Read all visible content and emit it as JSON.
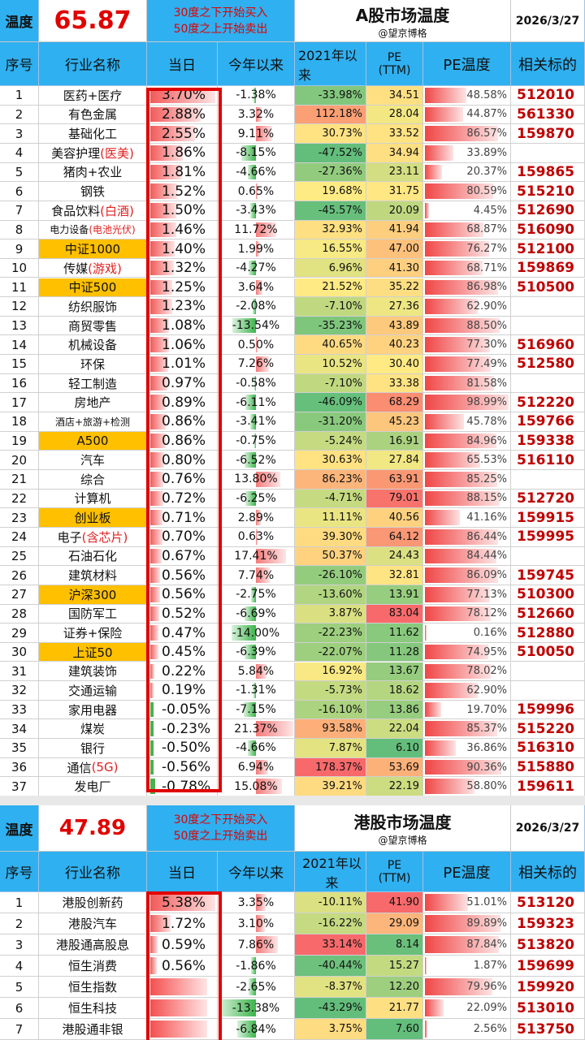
{
  "colors": {
    "header_blue": "#2fb0f0",
    "accent_red": "#e00000",
    "highlight": "#ffc000",
    "pe_red": "#f04040"
  },
  "a": {
    "temp_label": "温度",
    "temp_value": "65.87",
    "rule_buy": "30度之下开始买入",
    "rule_sell": "50度之上开始卖出",
    "title": "A股市场温度",
    "subtitle": "@望京博格",
    "date": "2026/3/27",
    "headers": {
      "idx": "序号",
      "name": "行业名称",
      "day": "当日",
      "ytd": "今年以来",
      "since2021": "2021年以来",
      "pe": "PE",
      "pe_sub": "(TTM)",
      "pe_temp": "PE温度",
      "target": "相关标的"
    },
    "rows": [
      {
        "idx": "1",
        "name": "医药+医疗",
        "day": "3.70%",
        "ytd": "-1.38%",
        "since": "-33.98%",
        "pe": "34.51",
        "pt": "48.58%",
        "code": "512010"
      },
      {
        "idx": "2",
        "name": "有色金属",
        "day": "2.88%",
        "ytd": "3.32%",
        "since": "112.18%",
        "pe": "28.04",
        "pt": "44.87%",
        "code": "561330"
      },
      {
        "idx": "3",
        "name": "基础化工",
        "day": "2.55%",
        "ytd": "9.11%",
        "since": "30.73%",
        "pe": "33.52",
        "pt": "86.57%",
        "code": "159870"
      },
      {
        "idx": "4",
        "name": "美容护理",
        "name2": "(医美)",
        "day": "1.86%",
        "ytd": "-8.15%",
        "since": "-47.52%",
        "pe": "34.94",
        "pt": "33.89%",
        "code": ""
      },
      {
        "idx": "5",
        "name": "猪肉+农业",
        "day": "1.81%",
        "ytd": "-4.66%",
        "since": "-27.36%",
        "pe": "23.11",
        "pt": "20.37%",
        "code": "159865"
      },
      {
        "idx": "6",
        "name": "钢铁",
        "day": "1.52%",
        "ytd": "0.65%",
        "since": "19.68%",
        "pe": "31.75",
        "pt": "80.59%",
        "code": "515210"
      },
      {
        "idx": "7",
        "name": "食品饮料",
        "name2": "(白酒)",
        "day": "1.50%",
        "ytd": "-3.43%",
        "since": "-45.57%",
        "pe": "20.09",
        "pt": "4.45%",
        "code": "512690"
      },
      {
        "idx": "8",
        "name": "电力设备",
        "name2": "(电池光伏)",
        "small": true,
        "day": "1.46%",
        "ytd": "11.72%",
        "since": "32.93%",
        "pe": "41.94",
        "pt": "68.87%",
        "code": "516090"
      },
      {
        "idx": "9",
        "name": "中证1000",
        "hl": true,
        "day": "1.40%",
        "ytd": "1.99%",
        "since": "16.55%",
        "pe": "47.00",
        "pt": "76.27%",
        "code": "512100"
      },
      {
        "idx": "10",
        "name": "传媒",
        "name2": "(游戏)",
        "day": "1.32%",
        "ytd": "-4.27%",
        "since": "6.96%",
        "pe": "41.30",
        "pt": "68.71%",
        "code": "159869"
      },
      {
        "idx": "11",
        "name": "中证500",
        "hl": true,
        "day": "1.25%",
        "ytd": "3.64%",
        "since": "21.52%",
        "pe": "35.22",
        "pt": "86.98%",
        "code": "510500"
      },
      {
        "idx": "12",
        "name": "纺织服饰",
        "day": "1.23%",
        "ytd": "-2.08%",
        "since": "-7.10%",
        "pe": "27.36",
        "pt": "62.90%",
        "code": ""
      },
      {
        "idx": "13",
        "name": "商贸零售",
        "day": "1.08%",
        "ytd": "-13.54%",
        "since": "-35.23%",
        "pe": "43.89",
        "pt": "88.50%",
        "code": ""
      },
      {
        "idx": "14",
        "name": "机械设备",
        "day": "1.06%",
        "ytd": "0.50%",
        "since": "40.65%",
        "pe": "40.23",
        "pt": "77.30%",
        "code": "516960"
      },
      {
        "idx": "15",
        "name": "环保",
        "day": "1.01%",
        "ytd": "7.26%",
        "since": "10.52%",
        "pe": "30.40",
        "pt": "77.49%",
        "code": "512580"
      },
      {
        "idx": "16",
        "name": "轻工制造",
        "day": "0.97%",
        "ytd": "-0.58%",
        "since": "-7.10%",
        "pe": "33.38",
        "pt": "81.58%",
        "code": ""
      },
      {
        "idx": "17",
        "name": "房地产",
        "day": "0.89%",
        "ytd": "-6.11%",
        "since": "-46.09%",
        "pe": "68.29",
        "pt": "98.99%",
        "code": "512220"
      },
      {
        "idx": "18",
        "name": "酒店+旅游+检测",
        "small": true,
        "day": "0.86%",
        "ytd": "-3.41%",
        "since": "-31.20%",
        "pe": "45.23",
        "pt": "45.78%",
        "code": "159766"
      },
      {
        "idx": "19",
        "name": "A500",
        "hl": true,
        "day": "0.86%",
        "ytd": "-0.75%",
        "since": "-5.24%",
        "pe": "16.91",
        "pt": "84.96%",
        "code": "159338"
      },
      {
        "idx": "20",
        "name": "汽车",
        "day": "0.80%",
        "ytd": "-6.52%",
        "since": "30.63%",
        "pe": "27.84",
        "pt": "65.53%",
        "code": "516110"
      },
      {
        "idx": "21",
        "name": "综合",
        "day": "0.76%",
        "ytd": "13.80%",
        "since": "86.23%",
        "pe": "63.91",
        "pt": "85.25%",
        "code": ""
      },
      {
        "idx": "22",
        "name": "计算机",
        "day": "0.72%",
        "ytd": "-6.25%",
        "since": "-4.71%",
        "pe": "79.01",
        "pt": "88.15%",
        "code": "512720"
      },
      {
        "idx": "23",
        "name": "创业板",
        "hl": true,
        "day": "0.71%",
        "ytd": "2.89%",
        "since": "11.11%",
        "pe": "40.56",
        "pt": "41.16%",
        "code": "159915"
      },
      {
        "idx": "24",
        "name": "电子",
        "name2": "(含芯片)",
        "day": "0.70%",
        "ytd": "0.63%",
        "since": "39.30%",
        "pe": "64.12",
        "pt": "86.44%",
        "code": "159995"
      },
      {
        "idx": "25",
        "name": "石油石化",
        "day": "0.67%",
        "ytd": "17.41%",
        "since": "50.37%",
        "pe": "24.43",
        "pt": "84.44%",
        "code": ""
      },
      {
        "idx": "26",
        "name": "建筑材料",
        "day": "0.56%",
        "ytd": "7.74%",
        "since": "-26.10%",
        "pe": "32.81",
        "pt": "86.09%",
        "code": "159745"
      },
      {
        "idx": "27",
        "name": "沪深300",
        "hl": true,
        "day": "0.56%",
        "ytd": "-2.75%",
        "since": "-13.60%",
        "pe": "13.91",
        "pt": "77.13%",
        "code": "510300"
      },
      {
        "idx": "28",
        "name": "国防军工",
        "day": "0.52%",
        "ytd": "-6.69%",
        "since": "3.87%",
        "pe": "83.04",
        "pt": "78.12%",
        "code": "512660"
      },
      {
        "idx": "29",
        "name": "证券+保险",
        "day": "0.47%",
        "ytd": "-14.00%",
        "since": "-22.23%",
        "pe": "11.62",
        "pt": "0.16%",
        "code": "512880"
      },
      {
        "idx": "30",
        "name": "上证50",
        "hl": true,
        "day": "0.45%",
        "ytd": "-6.39%",
        "since": "-22.07%",
        "pe": "11.28",
        "pt": "74.95%",
        "code": "510050"
      },
      {
        "idx": "31",
        "name": "建筑装饰",
        "day": "0.22%",
        "ytd": "5.84%",
        "since": "16.92%",
        "pe": "13.67",
        "pt": "78.02%",
        "code": ""
      },
      {
        "idx": "32",
        "name": "交通运输",
        "day": "0.19%",
        "ytd": "-1.31%",
        "since": "-5.73%",
        "pe": "18.62",
        "pt": "62.90%",
        "code": ""
      },
      {
        "idx": "33",
        "name": "家用电器",
        "day": "-0.05%",
        "ytd": "-7.15%",
        "since": "-16.10%",
        "pe": "13.86",
        "pt": "19.70%",
        "code": "159996"
      },
      {
        "idx": "34",
        "name": "煤炭",
        "day": "-0.23%",
        "ytd": "21.37%",
        "since": "93.58%",
        "pe": "22.04",
        "pt": "85.37%",
        "code": "515220"
      },
      {
        "idx": "35",
        "name": "银行",
        "day": "-0.50%",
        "ytd": "-4.66%",
        "since": "7.87%",
        "pe": "6.10",
        "pt": "36.86%",
        "code": "516310"
      },
      {
        "idx": "36",
        "name": "通信",
        "name2": "(5G)",
        "day": "-0.56%",
        "ytd": "6.94%",
        "since": "178.37%",
        "pe": "53.69",
        "pt": "90.36%",
        "code": "515880"
      },
      {
        "idx": "37",
        "name": "发电厂",
        "day": "-0.78%",
        "ytd": "15.08%",
        "since": "39.21%",
        "pe": "22.19",
        "pt": "58.80%",
        "code": "159611"
      }
    ]
  },
  "h": {
    "temp_label": "温度",
    "temp_value": "47.89",
    "rule_buy": "30度之下开始买入",
    "rule_sell": "50度之上开始卖出",
    "title": "港股市场温度",
    "subtitle": "@望京博格",
    "date": "2026/3/27",
    "headers": {
      "idx": "序号",
      "name": "行业名称",
      "day": "当日",
      "ytd": "今年以来",
      "since2021": "2021年以来",
      "pe": "PE",
      "pe_sub": "(TTM)",
      "pe_temp": "PE温度",
      "target": "相关标的"
    },
    "rows": [
      {
        "idx": "1",
        "name": "港股创新药",
        "day": "5.38%",
        "ytd": "3.35%",
        "since": "-10.11%",
        "pe": "41.90",
        "pt": "51.01%",
        "code": "513120"
      },
      {
        "idx": "2",
        "name": "港股汽车",
        "day": "1.72%",
        "ytd": "3.10%",
        "since": "-16.22%",
        "pe": "29.09",
        "pt": "89.89%",
        "code": "159323"
      },
      {
        "idx": "3",
        "name": "港股通高股息",
        "day": "0.59%",
        "ytd": "7.86%",
        "since": "33.14%",
        "pe": "8.14",
        "pt": "87.84%",
        "code": "513820"
      },
      {
        "idx": "4",
        "name": "恒生消费",
        "day": "0.56%",
        "ytd": "-1.86%",
        "since": "-40.44%",
        "pe": "15.27",
        "pt": "1.87%",
        "code": "159699"
      },
      {
        "idx": "5",
        "name": "恒生指数",
        "day": "",
        "ytd": "-2.65%",
        "since": "-8.37%",
        "pe": "12.20",
        "pt": "79.96%",
        "code": "159920"
      },
      {
        "idx": "6",
        "name": "恒生科技",
        "day": "",
        "ytd": "-13.38%",
        "since": "-43.29%",
        "pe": "21.77",
        "pt": "22.09%",
        "code": "513010"
      },
      {
        "idx": "7",
        "name": "港股通非银",
        "day": "",
        "ytd": "-6.84%",
        "since": "3.75%",
        "pe": "7.60",
        "pt": "2.56%",
        "code": "513750"
      }
    ]
  }
}
